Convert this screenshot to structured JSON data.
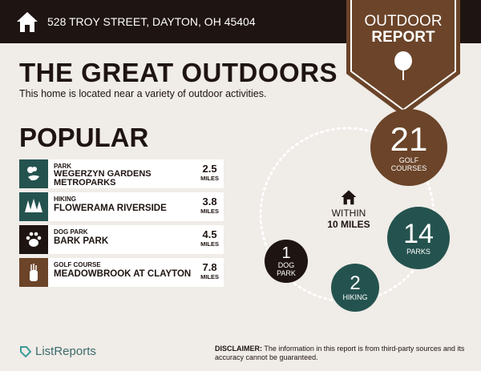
{
  "header": {
    "address": "528 TROY STREET, DAYTON, OH 45404",
    "icon": "home-icon"
  },
  "badge": {
    "line1": "OUTDOOR",
    "line2": "REPORT",
    "icon": "tree-icon"
  },
  "title": "THE GREAT OUTDOORS",
  "subtitle": "This home is located near a variety of outdoor activities.",
  "popular": {
    "heading": "POPULAR",
    "items": [
      {
        "category": "PARK",
        "name": "WEGERZYN GARDENS METROPARKS",
        "distance": "2.5",
        "unit": "MILES",
        "icon": "park-icon",
        "color": "#24534f"
      },
      {
        "category": "HIKING",
        "name": "FLOWERAMA RIVERSIDE",
        "distance": "3.8",
        "unit": "MILES",
        "icon": "trees-icon",
        "color": "#24534f"
      },
      {
        "category": "DOG PARK",
        "name": "BARK PARK",
        "distance": "4.5",
        "unit": "MILES",
        "icon": "paw-icon",
        "color": "#1e1411"
      },
      {
        "category": "GOLF COURSE",
        "name": "MEADOWBROOK AT CLAYTON",
        "distance": "7.8",
        "unit": "MILES",
        "icon": "golf-bag-icon",
        "color": "#6b4429"
      }
    ]
  },
  "within": {
    "line1": "WITHIN",
    "line2": "10 MILES",
    "icon": "home-icon"
  },
  "counts": [
    {
      "value": "21",
      "label": "GOLF COURSES",
      "color": "#6b4429"
    },
    {
      "value": "14",
      "label": "PARKS",
      "color": "#24534f"
    },
    {
      "value": "2",
      "label": "HIKING",
      "color": "#24534f"
    },
    {
      "value": "1",
      "label": "DOG PARK",
      "color": "#1e1411"
    }
  ],
  "footer": {
    "logo": "ListReports",
    "disclaimer_label": "DISCLAIMER:",
    "disclaimer": " The information in this report is from third-party sources and its accuracy cannot be guaranteed."
  }
}
